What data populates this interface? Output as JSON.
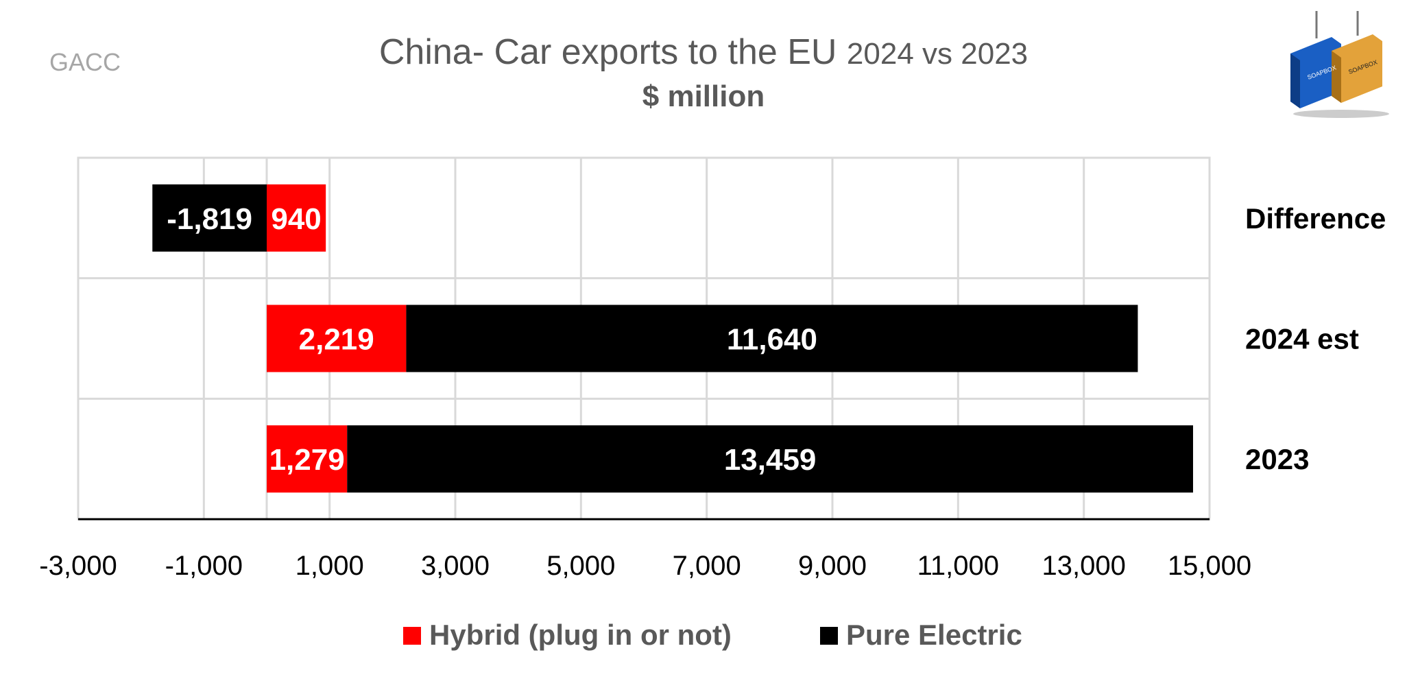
{
  "source_label": "GACC",
  "chart_data": {
    "type": "bar",
    "orientation": "horizontal",
    "stacked": true,
    "title": "China- Car exports to the EU",
    "title_years": "2024 vs 2023",
    "subtitle": "$ million",
    "categories": [
      "Difference",
      "2024 est",
      "2023"
    ],
    "series": [
      {
        "name": "Hybrid (plug in or not)",
        "color": "#ff0000",
        "values": [
          940,
          2219,
          1279
        ],
        "labels": [
          "940",
          "2,219",
          "1,279"
        ]
      },
      {
        "name": "Pure Electric",
        "color": "#000000",
        "values": [
          -1819,
          11640,
          13459
        ],
        "labels": [
          "-1,819",
          "11,640",
          "13,459"
        ]
      }
    ],
    "xlim": [
      -3000,
      15000
    ],
    "x_ticks": [
      -3000,
      -1000,
      1000,
      3000,
      5000,
      7000,
      9000,
      11000,
      13000,
      15000
    ],
    "x_tick_labels": [
      "-3,000",
      "-1,000",
      "1,000",
      "3,000",
      "5,000",
      "7,000",
      "9,000",
      "11,000",
      "13,000",
      "15,000"
    ],
    "grid": true,
    "legend": "bottom",
    "category_labels_position": "right"
  },
  "logo": {
    "icon": "shipping-containers-logo",
    "text": "SOAPBOX"
  }
}
